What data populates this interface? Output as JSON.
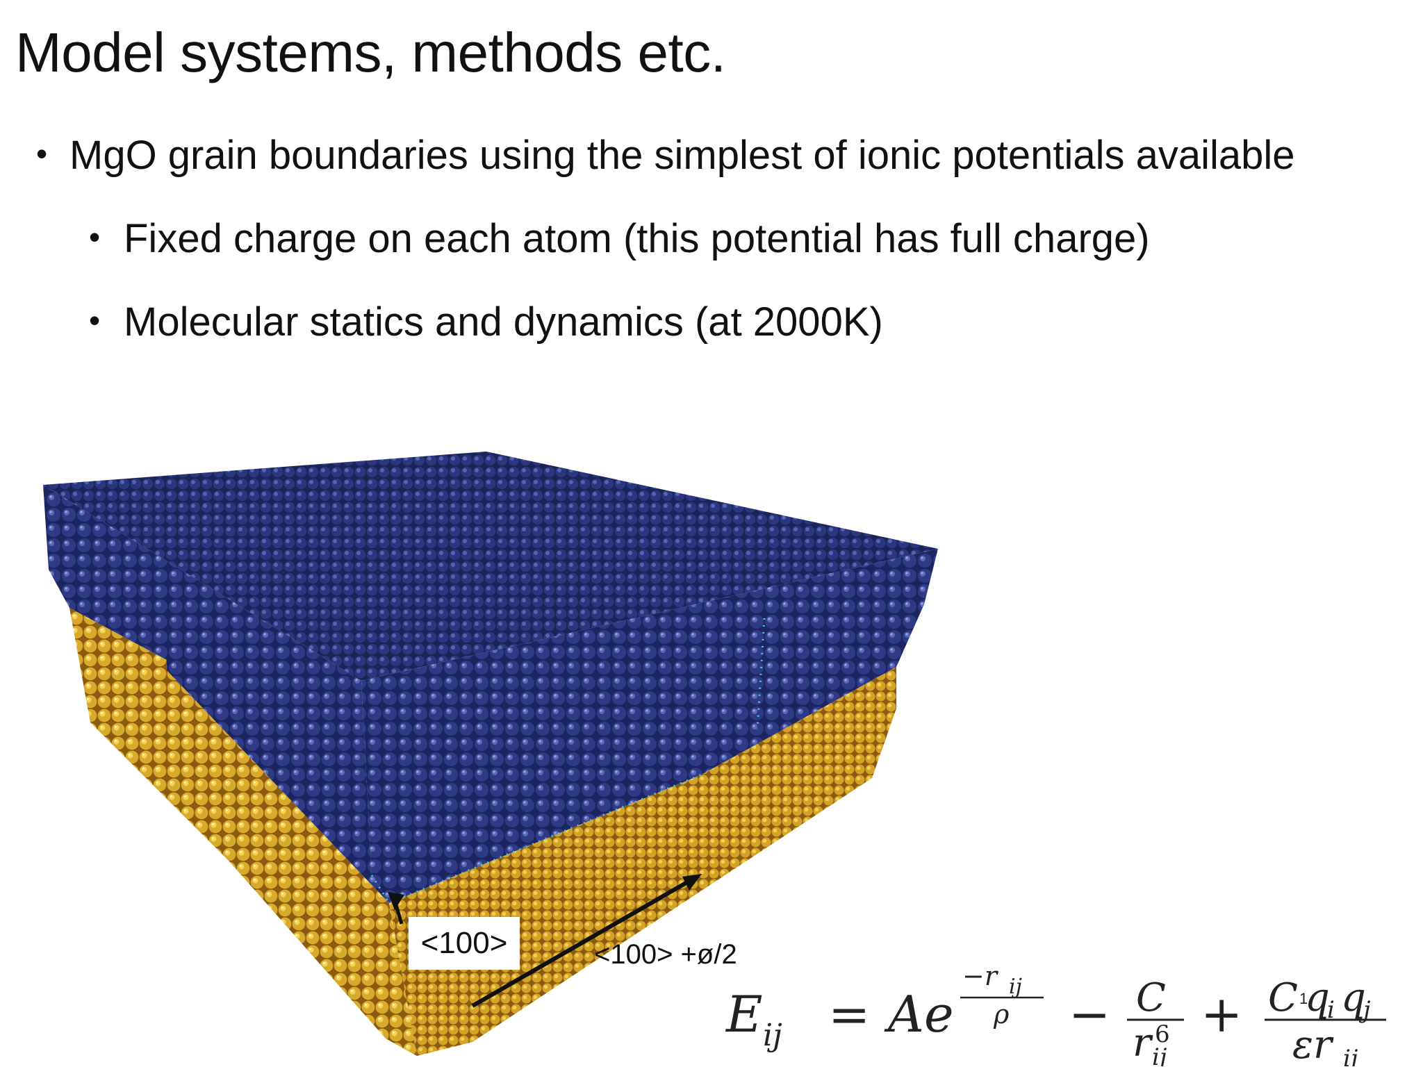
{
  "slide": {
    "title": "Model systems, methods etc.",
    "bullets": [
      {
        "level": 1,
        "text": "MgO grain boundaries using the simplest of ionic potentials available"
      },
      {
        "level": 2,
        "text": "Fixed charge on each atom (this potential has full charge)"
      },
      {
        "level": 2,
        "text": "Molecular statics and dynamics (at 2000K)"
      }
    ],
    "bullet_glyph": "•"
  },
  "figure": {
    "label_axis": "<100>",
    "label_diagonal": "<100> +ø/2",
    "colors": {
      "top_grain": "#27306f",
      "bottom_grain": "#e3b52e",
      "boundary": "#4cc4e0"
    }
  },
  "equation": {
    "lhs": "E",
    "lhs_sub": "ij",
    "equals": "=",
    "A": "A",
    "e": "e",
    "exp_num": "−r",
    "exp_num_sub": "ij",
    "exp_den": "ρ",
    "minus": "−",
    "frac2_num": "C",
    "frac2_den": "r",
    "frac2_den_sup": "6",
    "frac2_den_sub": "ij",
    "plus": "+",
    "frac3_num_C": "C",
    "frac3_num_q1": "q",
    "frac3_num_q1_sub": "i",
    "frac3_num_q2": "q",
    "frac3_num_q2_sub": "j",
    "frac3_den": "εr",
    "frac3_den_sub": "ij",
    "page_number": "1"
  }
}
